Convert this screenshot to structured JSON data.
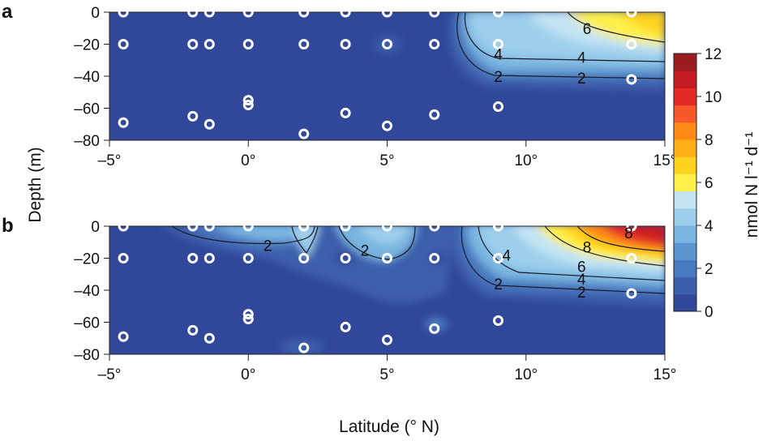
{
  "chart_data": [
    {
      "type": "heatmap",
      "panel_label": "a",
      "xlim": [
        -5,
        15
      ],
      "ylim": [
        -80,
        0
      ],
      "x_ticks": [
        -5,
        0,
        5,
        10,
        15
      ],
      "x_tick_labels": [
        "–5°",
        "0°",
        "5°",
        "10°",
        "15°"
      ],
      "y_ticks": [
        0,
        -20,
        -40,
        -60,
        -80
      ],
      "y_tick_labels": [
        "0",
        "–20",
        "–40",
        "–60",
        "–80"
      ],
      "stations": [
        {
          "x": -4.5,
          "y": 0
        },
        {
          "x": -4.5,
          "y": -20
        },
        {
          "x": -4.5,
          "y": -69
        },
        {
          "x": -2.0,
          "y": 0
        },
        {
          "x": -2.0,
          "y": -20
        },
        {
          "x": -2.0,
          "y": -65
        },
        {
          "x": -1.4,
          "y": 0
        },
        {
          "x": -1.4,
          "y": -20
        },
        {
          "x": -1.4,
          "y": -70
        },
        {
          "x": 0.0,
          "y": 0
        },
        {
          "x": 0.0,
          "y": -20
        },
        {
          "x": 0.0,
          "y": -55
        },
        {
          "x": 0.0,
          "y": -58
        },
        {
          "x": 2.0,
          "y": 0
        },
        {
          "x": 2.0,
          "y": -20
        },
        {
          "x": 2.0,
          "y": -76
        },
        {
          "x": 3.5,
          "y": 0
        },
        {
          "x": 3.5,
          "y": -20
        },
        {
          "x": 3.5,
          "y": -63
        },
        {
          "x": 5.0,
          "y": 0
        },
        {
          "x": 5.0,
          "y": -20
        },
        {
          "x": 5.0,
          "y": -71
        },
        {
          "x": 6.7,
          "y": 0
        },
        {
          "x": 6.7,
          "y": -20
        },
        {
          "x": 6.7,
          "y": -64
        },
        {
          "x": 9.0,
          "y": 0
        },
        {
          "x": 9.0,
          "y": -20
        },
        {
          "x": 9.0,
          "y": -59
        },
        {
          "x": 13.8,
          "y": 0
        },
        {
          "x": 13.8,
          "y": -20
        },
        {
          "x": 13.8,
          "y": -42
        }
      ],
      "contour_labels": [
        {
          "text": "6",
          "x": 12.2,
          "y": -10
        },
        {
          "text": "4",
          "x": 9.0,
          "y": -26
        },
        {
          "text": "4",
          "x": 12.0,
          "y": -28
        },
        {
          "text": "2",
          "x": 9.0,
          "y": -40
        },
        {
          "text": "2",
          "x": 12.0,
          "y": -41
        }
      ]
    },
    {
      "type": "heatmap",
      "panel_label": "b",
      "xlim": [
        -5,
        15
      ],
      "ylim": [
        -80,
        0
      ],
      "x_ticks": [
        -5,
        0,
        5,
        10,
        15
      ],
      "x_tick_labels": [
        "–5°",
        "0°",
        "5°",
        "10°",
        "15°"
      ],
      "y_ticks": [
        0,
        -20,
        -40,
        -60,
        -80
      ],
      "y_tick_labels": [
        "0",
        "–20",
        "–40",
        "–60",
        "–80"
      ],
      "stations": [
        {
          "x": -4.5,
          "y": 0
        },
        {
          "x": -4.5,
          "y": -20
        },
        {
          "x": -4.5,
          "y": -69
        },
        {
          "x": -2.0,
          "y": 0
        },
        {
          "x": -2.0,
          "y": -20
        },
        {
          "x": -2.0,
          "y": -65
        },
        {
          "x": -1.4,
          "y": 0
        },
        {
          "x": -1.4,
          "y": -20
        },
        {
          "x": -1.4,
          "y": -70
        },
        {
          "x": 0.0,
          "y": 0
        },
        {
          "x": 0.0,
          "y": -20
        },
        {
          "x": 0.0,
          "y": -55
        },
        {
          "x": 0.0,
          "y": -58
        },
        {
          "x": 2.0,
          "y": 0
        },
        {
          "x": 2.0,
          "y": -20
        },
        {
          "x": 2.0,
          "y": -76
        },
        {
          "x": 3.5,
          "y": 0
        },
        {
          "x": 3.5,
          "y": -20
        },
        {
          "x": 3.5,
          "y": -63
        },
        {
          "x": 5.0,
          "y": 0
        },
        {
          "x": 5.0,
          "y": -20
        },
        {
          "x": 5.0,
          "y": -71
        },
        {
          "x": 6.7,
          "y": 0
        },
        {
          "x": 6.7,
          "y": -20
        },
        {
          "x": 6.7,
          "y": -64
        },
        {
          "x": 9.0,
          "y": 0
        },
        {
          "x": 9.0,
          "y": -20
        },
        {
          "x": 9.0,
          "y": -59
        },
        {
          "x": 13.8,
          "y": 0
        },
        {
          "x": 13.8,
          "y": -20
        },
        {
          "x": 13.8,
          "y": -42
        }
      ],
      "contour_labels": [
        {
          "text": "2",
          "x": 0.7,
          "y": -12
        },
        {
          "text": "2",
          "x": 4.2,
          "y": -15
        },
        {
          "text": "4",
          "x": 9.3,
          "y": -18
        },
        {
          "text": "8",
          "x": 12.2,
          "y": -13
        },
        {
          "text": "6",
          "x": 12.0,
          "y": -25
        },
        {
          "text": "4",
          "x": 12.0,
          "y": -33
        },
        {
          "text": "2",
          "x": 9.0,
          "y": -36
        },
        {
          "text": "2",
          "x": 12.0,
          "y": -41
        },
        {
          "text": "8",
          "x": 13.7,
          "y": -4
        }
      ]
    }
  ],
  "shared": {
    "ylabel": "Depth (m)",
    "xlabel": "Latitude (° N)"
  },
  "colorbar": {
    "label": "nmol N l⁻¹ d⁻¹",
    "min": 0,
    "max": 12,
    "ticks": [
      "12",
      "10",
      "8",
      "6",
      "4",
      "2",
      "0"
    ],
    "colors": [
      "#30479a",
      "#3c5fac",
      "#4878be",
      "#5b95d0",
      "#79b5e0",
      "#9dcfec",
      "#c4e4f4",
      "#fff04a",
      "#ffd21e",
      "#ffae14",
      "#ff8a16",
      "#f7592a",
      "#e32b26",
      "#c41b22",
      "#9b1c20"
    ]
  }
}
